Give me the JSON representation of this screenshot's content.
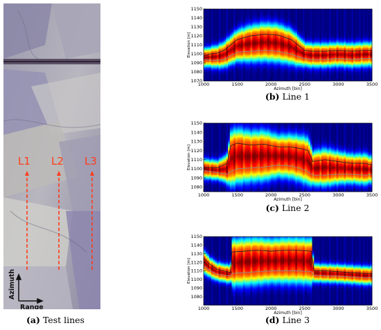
{
  "panels": [
    {
      "id": "a",
      "caption_label": "(a)",
      "caption_text": "Test lines"
    },
    {
      "id": "b",
      "caption_label": "(b)",
      "caption_text": "Line 1"
    },
    {
      "id": "c",
      "caption_label": "(c)",
      "caption_text": "Line 2"
    },
    {
      "id": "d",
      "caption_label": "(d)",
      "caption_text": "Line 3"
    }
  ],
  "photo": {
    "line_labels": [
      "L1",
      "L2",
      "L3"
    ],
    "axis_vertical_label": "Azimuth",
    "axis_horizontal_label": "Range",
    "colors": {
      "line": "#ff3b1a",
      "axis": "#111111"
    }
  },
  "chart_data": [
    {
      "type": "heatmap",
      "panel": "b",
      "title": "",
      "xlabel": "Azimuth [bin]",
      "ylabel": "Elevation [m]",
      "xlim": [
        1000,
        3500
      ],
      "ylim": [
        1070,
        1150
      ],
      "xticks": [
        1000,
        1500,
        2000,
        2500,
        3000,
        3500
      ],
      "yticks": [
        1070,
        1080,
        1090,
        1100,
        1110,
        1120,
        1130,
        1140,
        1150
      ],
      "surface": {
        "x": [
          1000,
          1100,
          1200,
          1300,
          1400,
          1500,
          1700,
          1900,
          2100,
          2300,
          2400,
          2500,
          2600,
          2800,
          3000,
          3200,
          3400,
          3500
        ],
        "top": [
          1098,
          1100,
          1101,
          1104,
          1110,
          1116,
          1120,
          1122,
          1121,
          1116,
          1110,
          1104,
          1103,
          1103,
          1104,
          1103,
          1104,
          1104
        ],
        "bottom": [
          1094,
          1093,
          1093,
          1094,
          1098,
          1102,
          1103,
          1104,
          1103,
          1100,
          1097,
          1095,
          1094,
          1094,
          1095,
          1094,
          1095,
          1095
        ]
      }
    },
    {
      "type": "heatmap",
      "panel": "c",
      "title": "",
      "xlabel": "Azimuth [bin]",
      "ylabel": "Elevation [m]",
      "xlim": [
        1000,
        3500
      ],
      "ylim": [
        1075,
        1150
      ],
      "xticks": [
        1000,
        1500,
        2000,
        2500,
        3000,
        3500
      ],
      "yticks": [
        1080,
        1090,
        1100,
        1110,
        1120,
        1130,
        1140,
        1150
      ],
      "surface": {
        "x": [
          1000,
          1200,
          1350,
          1400,
          1500,
          1700,
          1900,
          2100,
          2300,
          2450,
          2550,
          2620,
          2800,
          3000,
          3200,
          3400,
          3500
        ],
        "top": [
          1102,
          1101,
          1106,
          1125,
          1128,
          1126,
          1127,
          1124,
          1124,
          1122,
          1120,
          1108,
          1110,
          1108,
          1106,
          1106,
          1104
        ],
        "bottom": [
          1098,
          1096,
          1094,
          1097,
          1100,
          1101,
          1102,
          1104,
          1103,
          1100,
          1097,
          1093,
          1093,
          1094,
          1094,
          1093,
          1094
        ]
      }
    },
    {
      "type": "heatmap",
      "panel": "d",
      "title": "",
      "xlabel": "Azimuth [bin]",
      "ylabel": "Elevation [m]",
      "xlim": [
        1000,
        3500
      ],
      "ylim": [
        1070,
        1150
      ],
      "xticks": [
        1000,
        1500,
        2000,
        2500,
        3000,
        3500
      ],
      "yticks": [
        1080,
        1090,
        1100,
        1110,
        1120,
        1130,
        1140,
        1150
      ],
      "surface": {
        "x": [
          1000,
          1100,
          1200,
          1300,
          1400,
          1420,
          1600,
          1800,
          2000,
          2200,
          2400,
          2600,
          2640,
          2800,
          3000,
          3200,
          3400,
          3500
        ],
        "top": [
          1125,
          1117,
          1112,
          1110,
          1108,
          1132,
          1133,
          1134,
          1133,
          1134,
          1134,
          1133,
          1110,
          1110,
          1109,
          1108,
          1107,
          1107
        ],
        "bottom": [
          1116,
          1110,
          1106,
          1105,
          1104,
          1107,
          1108,
          1109,
          1110,
          1110,
          1110,
          1109,
          1105,
          1104,
          1104,
          1103,
          1102,
          1102
        ]
      }
    }
  ]
}
